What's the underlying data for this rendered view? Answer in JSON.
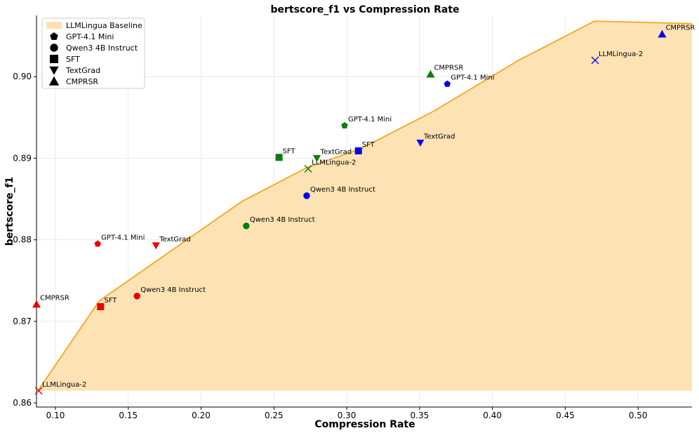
{
  "chart_data": {
    "type": "scatter",
    "title": "bertscore_f1 vs Compression Rate",
    "xlabel": "Compression Rate",
    "ylabel": "bertscore_f1",
    "xlim": [
      0.087,
      0.537
    ],
    "ylim": [
      0.8595,
      0.9075
    ],
    "xticks": [
      0.1,
      0.15,
      0.2,
      0.25,
      0.3,
      0.35,
      0.4,
      0.45,
      0.5
    ],
    "xtick_labels": [
      "0.10",
      "0.15",
      "0.20",
      "0.25",
      "0.30",
      "0.35",
      "0.40",
      "0.45",
      "0.50"
    ],
    "yticks": [
      0.86,
      0.87,
      0.88,
      0.89,
      0.9
    ],
    "ytick_labels": [
      "0.86",
      "0.87",
      "0.88",
      "0.89",
      "0.90"
    ],
    "grid": true,
    "legend_position": "top-left",
    "baseline": {
      "name": "LLMLingua Baseline",
      "fill_color": "#fde0b0",
      "line_color": "#f5a623",
      "floor": 0.8615,
      "x": [
        0.088,
        0.13,
        0.228,
        0.272,
        0.31,
        0.36,
        0.418,
        0.47,
        0.537
      ],
      "y": [
        0.8615,
        0.8725,
        0.8847,
        0.8888,
        0.8912,
        0.8958,
        0.902,
        0.9068,
        0.9065
      ]
    },
    "series": [
      {
        "name": "red",
        "color": "#ee0000",
        "points": [
          {
            "label": "LLMLingua-2",
            "marker": "x",
            "x": 0.0885,
            "y": 0.8615
          },
          {
            "label": "CMPRSR",
            "marker": "triangle-up",
            "x": 0.087,
            "y": 0.8721
          },
          {
            "label": "SFT",
            "marker": "square",
            "x": 0.131,
            "y": 0.8718
          },
          {
            "label": "Qwen3 4B Instruct",
            "marker": "circle",
            "x": 0.156,
            "y": 0.8731
          },
          {
            "label": "GPT-4.1 Mini",
            "marker": "pentagon",
            "x": 0.129,
            "y": 0.8795
          },
          {
            "label": "TextGrad",
            "marker": "triangle-down",
            "x": 0.169,
            "y": 0.8793
          }
        ]
      },
      {
        "name": "green",
        "color": "#0a7d0a",
        "points": [
          {
            "label": "Qwen3 4B Instruct",
            "marker": "circle",
            "x": 0.231,
            "y": 0.8817
          },
          {
            "label": "SFT",
            "marker": "square",
            "x": 0.2535,
            "y": 0.8901
          },
          {
            "label": "LLMLingua-2",
            "marker": "x",
            "x": 0.2735,
            "y": 0.8887
          },
          {
            "label": "TextGrad",
            "marker": "triangle-down",
            "x": 0.2795,
            "y": 0.89
          },
          {
            "label": "GPT-4.1 Mini",
            "marker": "pentagon",
            "x": 0.2985,
            "y": 0.894
          },
          {
            "label": "CMPRSR",
            "marker": "triangle-up",
            "x": 0.3575,
            "y": 0.9003
          }
        ]
      },
      {
        "name": "blue",
        "color": "#0000ee",
        "points": [
          {
            "label": "Qwen3 4B Instruct",
            "marker": "circle",
            "x": 0.2725,
            "y": 0.8854
          },
          {
            "label": "SFT",
            "marker": "square",
            "x": 0.308,
            "y": 0.8909
          },
          {
            "label": "TextGrad",
            "marker": "triangle-down",
            "x": 0.3505,
            "y": 0.8919
          },
          {
            "label": "GPT-4.1 Mini",
            "marker": "pentagon",
            "x": 0.369,
            "y": 0.8991
          },
          {
            "label": "LLMLingua-2",
            "marker": "x",
            "x": 0.4705,
            "y": 0.902
          },
          {
            "label": "CMPRSR",
            "marker": "triangle-up",
            "x": 0.5165,
            "y": 0.9052
          }
        ]
      }
    ],
    "legend": [
      {
        "label": "LLMLingua Baseline",
        "marker": "band"
      },
      {
        "label": "GPT-4.1 Mini",
        "marker": "pentagon"
      },
      {
        "label": "Qwen3 4B Instruct",
        "marker": "circle"
      },
      {
        "label": "SFT",
        "marker": "square"
      },
      {
        "label": "TextGrad",
        "marker": "triangle-down"
      },
      {
        "label": "CMPRSR",
        "marker": "triangle-up"
      }
    ]
  }
}
